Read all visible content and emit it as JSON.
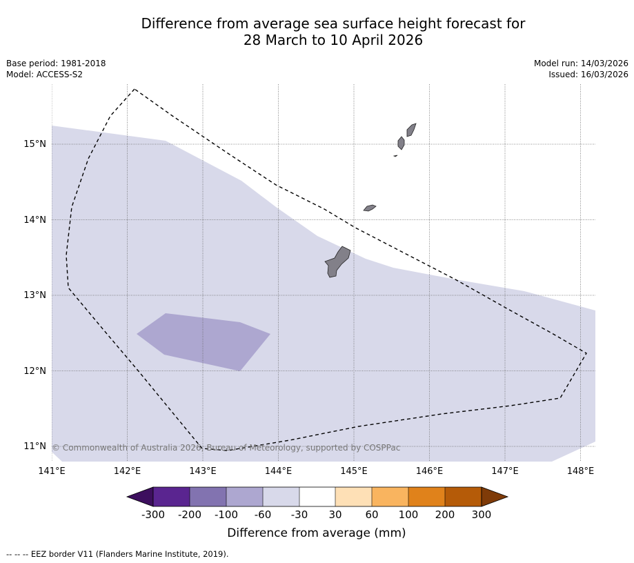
{
  "title_line1": "Difference from average sea surface height forecast for",
  "title_line2": "28 March to 10 April 2026",
  "base_period": "Base period: 1981-2018",
  "model": "Model: ACCESS-S2",
  "model_run": "Model run: 14/03/2026",
  "issued": "Issued: 16/03/2026",
  "copyright": "© Commonwealth of Australia 2026, Bureau of Meteorology, supported by COSPPac",
  "axes": {
    "lon_labels": [
      "141°E",
      "142°E",
      "143°E",
      "144°E",
      "145°E",
      "146°E",
      "147°E",
      "148°E"
    ],
    "lat_labels": [
      "15°N",
      "14°N",
      "13°N",
      "12°N",
      "11°N"
    ]
  },
  "colorbar": {
    "label": "Difference from average (mm)",
    "tick_labels": [
      "-300",
      "-200",
      "-100",
      "-60",
      "-30",
      "30",
      "60",
      "100",
      "200",
      "300"
    ],
    "colors": [
      "#3d0f5e",
      "#5a2590",
      "#8273b0",
      "#ada7d0",
      "#d8d9ea",
      "#ffffff",
      "#fee0b6",
      "#f9b45f",
      "#e0821b",
      "#b55b08",
      "#7f3b08"
    ]
  },
  "legend": {
    "eez_label": "--  --  -- EEZ border V11 (Flanders Marine Institute, 2019)."
  },
  "colors": {
    "region_light": "#d8d9ea",
    "region_medium": "#ada7d0",
    "land": "#828089"
  }
}
